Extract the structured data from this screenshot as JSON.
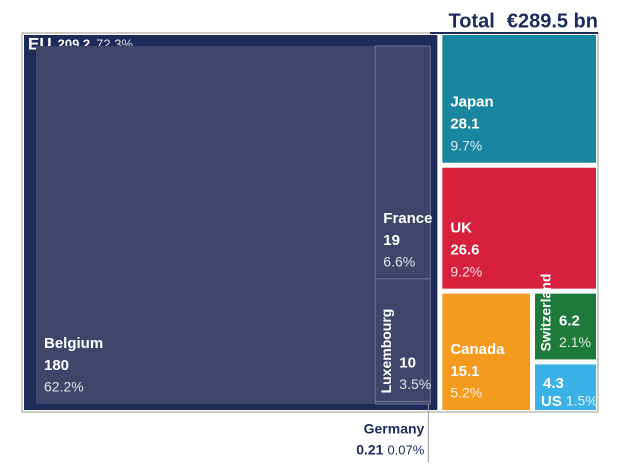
{
  "chart_data": {
    "type": "treemap",
    "total": {
      "name": "Total",
      "value": 289.5,
      "value_label": "€289.5 bn"
    },
    "items": [
      {
        "name": "EU",
        "value": 209.2,
        "share": 72.3,
        "share_label": "72.3%",
        "color": "#1d2b5b",
        "children": [
          {
            "name": "Belgium",
            "value": 180,
            "share": 62.2,
            "share_label": "62.2%",
            "color": "#3e4568"
          },
          {
            "name": "France",
            "value": 19,
            "share": 6.6,
            "share_label": "6.6%",
            "color": "#3e4568"
          },
          {
            "name": "Luxembourg",
            "value": 10,
            "share": 3.5,
            "share_label": "3.5%",
            "color": "#3e4568"
          },
          {
            "name": "Germany",
            "value": 0.21,
            "share": 0.07,
            "share_label": "0.07%",
            "color": "#3e4568"
          }
        ]
      },
      {
        "name": "Japan",
        "value": 28.1,
        "share": 9.7,
        "share_label": "9.7%",
        "color": "#1a859f"
      },
      {
        "name": "UK",
        "value": 26.6,
        "share": 9.2,
        "share_label": "9.2%",
        "color": "#d6203d"
      },
      {
        "name": "Canada",
        "value": 15.1,
        "share": 5.2,
        "share_label": "5.2%",
        "color": "#f39a1f"
      },
      {
        "name": "Switzerland",
        "value": 6.2,
        "share": 2.1,
        "share_label": "2.1%",
        "color": "#1e7a3b"
      },
      {
        "name": "US",
        "value": 4.3,
        "share": 1.5,
        "share_label": "1.5%",
        "color": "#3ab2e8"
      }
    ]
  }
}
